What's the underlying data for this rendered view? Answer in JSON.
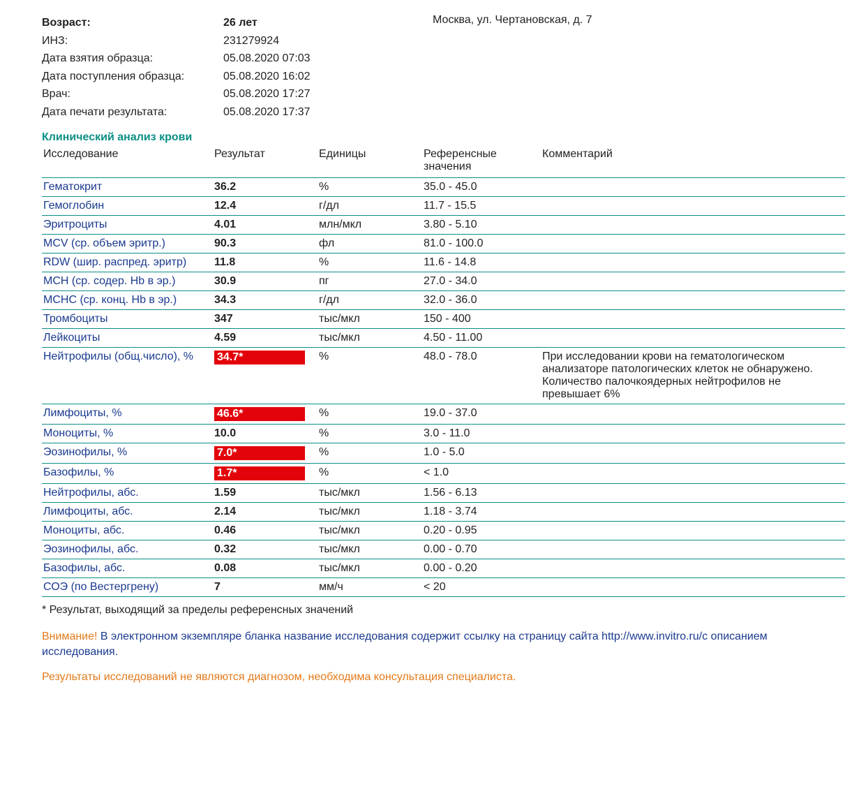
{
  "colors": {
    "teal": "#0b8f86",
    "navy": "#1a3a8f",
    "flag_bg": "#e3040b",
    "flag_text": "#ffffff",
    "orange": "#e37a1a",
    "text": "#222222",
    "row_border": "#0b8f86"
  },
  "address": "Москва, ул. Чертановская, д. 7",
  "meta": [
    {
      "label": "Возраст:",
      "value": "26 лет",
      "bold": true
    },
    {
      "label": "ИНЗ:",
      "value": "231279924",
      "bold": false
    },
    {
      "label": "Дата взятия образца:",
      "value": "05.08.2020 07:03",
      "bold": false
    },
    {
      "label": "Дата поступления образца:",
      "value": "05.08.2020 16:02",
      "bold": false
    },
    {
      "label": "Врач:",
      "value": "05.08.2020 17:27",
      "bold": false
    },
    {
      "label": "Дата печати результата:",
      "value": "05.08.2020 17:37",
      "bold": false
    }
  ],
  "section_title": "Клинический анализ крови",
  "columns": [
    "Исследование",
    "Результат",
    "Единицы",
    "Референсные значения",
    "Комментарий"
  ],
  "rows": [
    {
      "name": "Гематокрит",
      "result": "36.2",
      "flagged": false,
      "units": "%",
      "ref": "35.0 - 45.0",
      "comment": ""
    },
    {
      "name": "Гемоглобин",
      "result": "12.4",
      "flagged": false,
      "units": "г/дл",
      "ref": "11.7 - 15.5",
      "comment": ""
    },
    {
      "name": "Эритроциты",
      "result": "4.01",
      "flagged": false,
      "units": "млн/мкл",
      "ref": "3.80 - 5.10",
      "comment": ""
    },
    {
      "name": "MCV (ср. объем эритр.)",
      "result": "90.3",
      "flagged": false,
      "units": "фл",
      "ref": "81.0 - 100.0",
      "comment": ""
    },
    {
      "name": "RDW (шир. распред. эритр)",
      "result": "11.8",
      "flagged": false,
      "units": "%",
      "ref": "11.6 - 14.8",
      "comment": ""
    },
    {
      "name": "MCH (ср. содер. Hb в эр.)",
      "result": "30.9",
      "flagged": false,
      "units": "пг",
      "ref": "27.0 - 34.0",
      "comment": ""
    },
    {
      "name": "MCHC (ср. конц. Hb в эр.)",
      "result": "34.3",
      "flagged": false,
      "units": "г/дл",
      "ref": "32.0 - 36.0",
      "comment": ""
    },
    {
      "name": "Тромбоциты",
      "result": "347",
      "flagged": false,
      "units": "тыс/мкл",
      "ref": "150 - 400",
      "comment": ""
    },
    {
      "name": "Лейкоциты",
      "result": "4.59",
      "flagged": false,
      "units": "тыс/мкл",
      "ref": "4.50 - 11.00",
      "comment": ""
    },
    {
      "name": "Нейтрофилы (общ.число), %",
      "result": "34.7*",
      "flagged": true,
      "units": "%",
      "ref": "48.0 - 78.0",
      "comment": "При исследовании крови на гематологическом анализаторе патологических клеток не обнаружено. Количество палочкоядерных нейтрофилов не превышает 6%"
    },
    {
      "name": "Лимфоциты, %",
      "result": "46.6*",
      "flagged": true,
      "units": "%",
      "ref": "19.0 - 37.0",
      "comment": ""
    },
    {
      "name": "Моноциты, %",
      "result": "10.0",
      "flagged": false,
      "units": "%",
      "ref": "3.0 - 11.0",
      "comment": ""
    },
    {
      "name": "Эозинофилы, %",
      "result": "7.0*",
      "flagged": true,
      "units": "%",
      "ref": "1.0 - 5.0",
      "comment": ""
    },
    {
      "name": "Базофилы, %",
      "result": "1.7*",
      "flagged": true,
      "units": "%",
      "ref": "< 1.0",
      "comment": ""
    },
    {
      "name": "Нейтрофилы, абс.",
      "result": "1.59",
      "flagged": false,
      "units": "тыс/мкл",
      "ref": "1.56 - 6.13",
      "comment": ""
    },
    {
      "name": "Лимфоциты, абс.",
      "result": "2.14",
      "flagged": false,
      "units": "тыс/мкл",
      "ref": "1.18 - 3.74",
      "comment": ""
    },
    {
      "name": "Моноциты, абс.",
      "result": "0.46",
      "flagged": false,
      "units": "тыс/мкл",
      "ref": "0.20 - 0.95",
      "comment": ""
    },
    {
      "name": "Эозинофилы, абс.",
      "result": "0.32",
      "flagged": false,
      "units": "тыс/мкл",
      "ref": "0.00 - 0.70",
      "comment": ""
    },
    {
      "name": "Базофилы, абс.",
      "result": "0.08",
      "flagged": false,
      "units": "тыс/мкл",
      "ref": "0.00 - 0.20",
      "comment": ""
    },
    {
      "name": "СОЭ (по Вестергрену)",
      "result": "7",
      "flagged": false,
      "units": "мм/ч",
      "ref": "< 20",
      "comment": ""
    }
  ],
  "footnote": "* Результат, выходящий за пределы референсных значений",
  "warning_word": "Внимание!",
  "warning_text": " В электронном экземпляре бланка название исследования содержит ссылку на страницу сайта http://www.invitro.ru/с описанием исследования.",
  "disclaimer": "Результаты исследований не являются диагнозом, необходима консультация специалиста."
}
